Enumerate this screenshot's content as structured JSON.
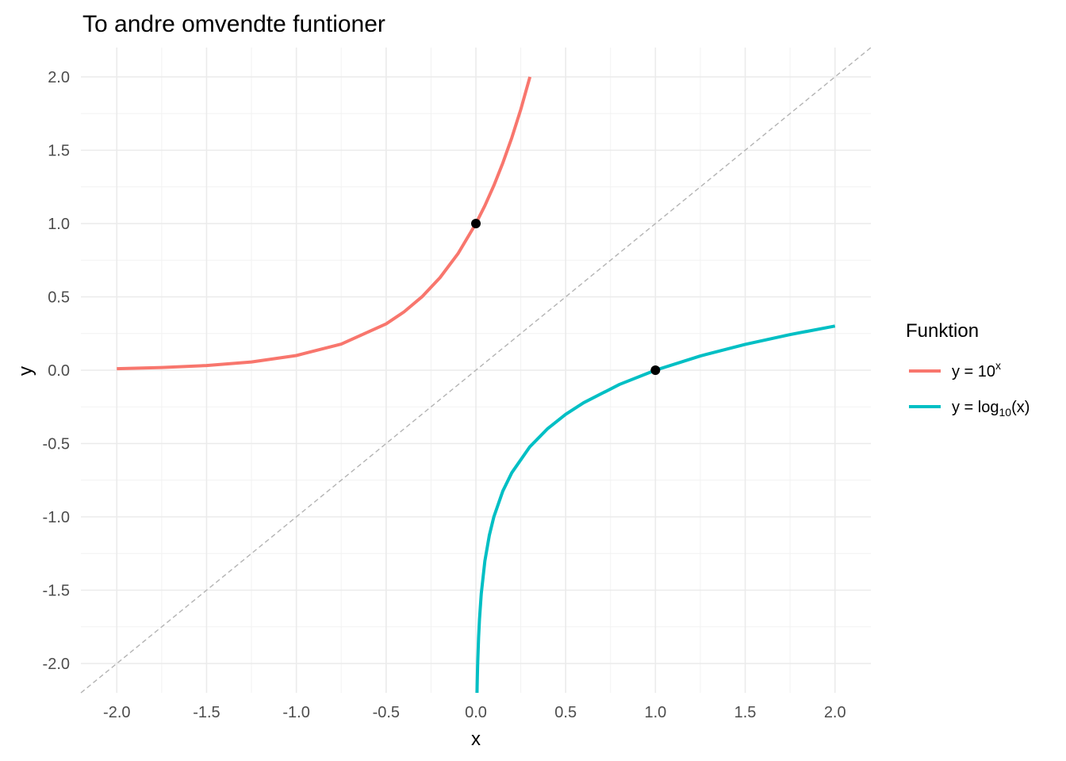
{
  "chart_data": {
    "type": "line",
    "title": "To andre omvendte funtioner",
    "xlabel": "x",
    "ylabel": "y",
    "xlim": [
      -2.2,
      2.2
    ],
    "ylim": [
      -2.2,
      2.2
    ],
    "x_ticks": [
      -2.0,
      -1.5,
      -1.0,
      -0.5,
      0.0,
      0.5,
      1.0,
      1.5,
      2.0
    ],
    "y_ticks": [
      -2.0,
      -1.5,
      -1.0,
      -0.5,
      0.0,
      0.5,
      1.0,
      1.5,
      2.0
    ],
    "x_tick_labels": [
      "-2.0",
      "-1.5",
      "-1.0",
      "-0.5",
      "0.0",
      "0.5",
      "1.0",
      "1.5",
      "2.0"
    ],
    "y_tick_labels": [
      "-2.0",
      "-1.5",
      "-1.0",
      "-0.5",
      "0.0",
      "0.5",
      "1.0",
      "1.5",
      "2.0"
    ],
    "grid": true,
    "legend": {
      "title": "Funktion",
      "position": "right",
      "entries": [
        {
          "prefix": "y = 10",
          "superscript": "x",
          "subscript": "",
          "suffix": "",
          "color": "#F8766D"
        },
        {
          "prefix": "y = log",
          "superscript": "",
          "subscript": "10",
          "suffix": "(x)",
          "color": "#00BFC4"
        }
      ]
    },
    "series": [
      {
        "function": "10^x",
        "color": "#F8766D",
        "x": [
          -2.0,
          -1.75,
          -1.5,
          -1.25,
          -1.0,
          -0.75,
          -0.5,
          -0.4,
          -0.3,
          -0.2,
          -0.1,
          0.0,
          0.05,
          0.1,
          0.15,
          0.2,
          0.25,
          0.301
        ],
        "y": [
          0.01,
          0.018,
          0.032,
          0.056,
          0.1,
          0.178,
          0.316,
          0.398,
          0.501,
          0.631,
          0.794,
          1.0,
          1.122,
          1.259,
          1.413,
          1.585,
          1.778,
          2.0
        ]
      },
      {
        "function": "log10(x)",
        "color": "#00BFC4",
        "x": [
          0.0063,
          0.007,
          0.008,
          0.01,
          0.015,
          0.02,
          0.03,
          0.05,
          0.075,
          0.1,
          0.15,
          0.2,
          0.3,
          0.4,
          0.5,
          0.6,
          0.8,
          1.0,
          1.25,
          1.5,
          1.75,
          2.0
        ],
        "y": [
          -2.2,
          -2.155,
          -2.097,
          -2.0,
          -1.824,
          -1.699,
          -1.523,
          -1.301,
          -1.125,
          -1.0,
          -0.824,
          -0.699,
          -0.523,
          -0.398,
          -0.301,
          -0.222,
          -0.097,
          0.0,
          0.097,
          0.176,
          0.243,
          0.301
        ]
      },
      {
        "function": "y = x",
        "style": "dashed",
        "color": "#b3b3b3",
        "x": [
          -2.2,
          2.2
        ],
        "y": [
          -2.2,
          2.2
        ]
      }
    ],
    "points": [
      {
        "x": 0,
        "y": 1,
        "color": "#000000"
      },
      {
        "x": 1,
        "y": 0,
        "color": "#000000"
      }
    ]
  }
}
